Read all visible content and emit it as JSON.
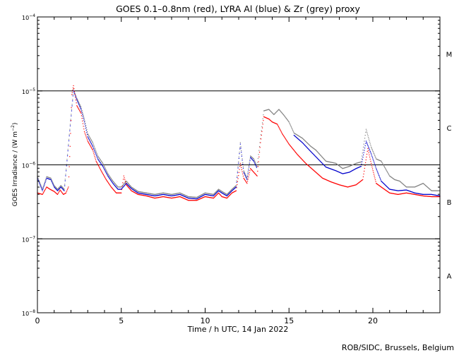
{
  "chart_data": {
    "type": "scatter",
    "title": "GOES 0.1–0.8nm (red), LYRA Al (blue) & Zr (grey) proxy",
    "xlabel": "Time / h UTC, 14 Jan 2022",
    "ylabel_main": "GOES Irradiance / (W m",
    "ylabel_sup": "−2",
    "ylabel_close": ")",
    "credit": "ROB/SIDC, Brussels, Belgium",
    "xlim": [
      0,
      24
    ],
    "ylim_log10": [
      -8,
      -4
    ],
    "x_ticks": [
      {
        "value": 0,
        "label": "0"
      },
      {
        "value": 5,
        "label": "5"
      },
      {
        "value": 10,
        "label": "10"
      },
      {
        "value": 15,
        "label": "15"
      },
      {
        "value": 20,
        "label": "20"
      }
    ],
    "y_ticks": [
      {
        "exp": -4,
        "base": "10",
        "sup": "−4"
      },
      {
        "exp": -5,
        "base": "10",
        "sup": "−5"
      },
      {
        "exp": -6,
        "base": "10",
        "sup": "−6"
      },
      {
        "exp": -7,
        "base": "10",
        "sup": "−7"
      },
      {
        "exp": -8,
        "base": "10",
        "sup": "−8"
      }
    ],
    "reference_lines_log10": [
      -5,
      -6,
      -7
    ],
    "flare_classes": [
      {
        "label": "M",
        "log10": -4.5
      },
      {
        "label": "C",
        "log10": -5.5
      },
      {
        "label": "B",
        "log10": -6.5
      },
      {
        "label": "A",
        "log10": -7.5
      }
    ],
    "colors": {
      "goes": "#ff0000",
      "lyra_al": "#0000cc",
      "lyra_zr": "#808080"
    },
    "series": [
      {
        "name": "GOES",
        "color": "#ff0000",
        "points": [
          [
            0.0,
            -6.38
          ],
          [
            0.3,
            -6.4
          ],
          [
            0.55,
            -6.3
          ],
          [
            0.75,
            -6.33
          ],
          [
            1.0,
            -6.36
          ],
          [
            1.2,
            -6.4
          ],
          [
            1.35,
            -6.34
          ],
          [
            1.55,
            -6.4
          ],
          [
            1.7,
            -6.38
          ],
          [
            1.85,
            -6.3
          ],
          [
            1.95,
            -5.75
          ],
          [
            2.05,
            -5.05
          ],
          [
            2.15,
            -4.93
          ],
          [
            2.35,
            -5.2
          ],
          [
            2.6,
            -5.3
          ],
          [
            2.8,
            -5.55
          ],
          [
            3.0,
            -5.68
          ],
          [
            3.3,
            -5.8
          ],
          [
            3.5,
            -5.95
          ],
          [
            3.8,
            -6.08
          ],
          [
            4.1,
            -6.2
          ],
          [
            4.4,
            -6.3
          ],
          [
            4.7,
            -6.38
          ],
          [
            5.0,
            -6.38
          ],
          [
            5.15,
            -6.15
          ],
          [
            5.3,
            -6.27
          ],
          [
            5.6,
            -6.35
          ],
          [
            6.0,
            -6.4
          ],
          [
            6.5,
            -6.42
          ],
          [
            7.0,
            -6.45
          ],
          [
            7.5,
            -6.43
          ],
          [
            8.0,
            -6.45
          ],
          [
            8.5,
            -6.43
          ],
          [
            9.0,
            -6.48
          ],
          [
            9.5,
            -6.48
          ],
          [
            10.0,
            -6.43
          ],
          [
            10.5,
            -6.45
          ],
          [
            10.8,
            -6.38
          ],
          [
            11.0,
            -6.43
          ],
          [
            11.3,
            -6.45
          ],
          [
            11.6,
            -6.38
          ],
          [
            11.85,
            -6.35
          ],
          [
            12.1,
            -5.98
          ],
          [
            12.3,
            -6.18
          ],
          [
            12.5,
            -6.25
          ],
          [
            12.7,
            -6.05
          ],
          [
            12.9,
            -6.1
          ],
          [
            13.1,
            -6.15
          ],
          [
            13.3,
            -5.7
          ],
          [
            13.5,
            -5.35
          ],
          [
            13.8,
            -5.38
          ],
          [
            14.0,
            -5.42
          ],
          [
            14.3,
            -5.45
          ],
          [
            14.6,
            -5.58
          ],
          [
            15.0,
            -5.72
          ],
          [
            15.5,
            -5.86
          ],
          [
            16.0,
            -5.98
          ],
          [
            16.5,
            -6.08
          ],
          [
            17.0,
            -6.18
          ],
          [
            17.5,
            -6.23
          ],
          [
            18.0,
            -6.27
          ],
          [
            18.5,
            -6.3
          ],
          [
            19.0,
            -6.27
          ],
          [
            19.4,
            -6.2
          ],
          [
            19.7,
            -5.78
          ],
          [
            19.9,
            -5.98
          ],
          [
            20.2,
            -6.25
          ],
          [
            20.5,
            -6.3
          ],
          [
            21.0,
            -6.38
          ],
          [
            21.5,
            -6.4
          ],
          [
            22.0,
            -6.38
          ],
          [
            22.5,
            -6.4
          ],
          [
            23.0,
            -6.42
          ],
          [
            23.5,
            -6.43
          ],
          [
            24.0,
            -6.43
          ]
        ]
      },
      {
        "name": "LYRA Al proxy",
        "color": "#0000cc",
        "points": [
          [
            0.0,
            -6.18
          ],
          [
            0.3,
            -6.35
          ],
          [
            0.55,
            -6.18
          ],
          [
            0.8,
            -6.2
          ],
          [
            1.0,
            -6.3
          ],
          [
            1.2,
            -6.35
          ],
          [
            1.4,
            -6.3
          ],
          [
            1.6,
            -6.35
          ],
          [
            2.15,
            -5.0
          ],
          [
            2.35,
            -5.12
          ],
          [
            2.6,
            -5.25
          ],
          [
            2.8,
            -5.42
          ],
          [
            3.0,
            -5.62
          ],
          [
            3.3,
            -5.75
          ],
          [
            3.6,
            -5.92
          ],
          [
            3.9,
            -6.02
          ],
          [
            4.2,
            -6.15
          ],
          [
            4.5,
            -6.25
          ],
          [
            4.8,
            -6.33
          ],
          [
            5.0,
            -6.33
          ],
          [
            5.3,
            -6.25
          ],
          [
            5.6,
            -6.32
          ],
          [
            6.0,
            -6.38
          ],
          [
            6.5,
            -6.4
          ],
          [
            7.0,
            -6.42
          ],
          [
            7.5,
            -6.4
          ],
          [
            8.0,
            -6.42
          ],
          [
            8.5,
            -6.4
          ],
          [
            9.0,
            -6.45
          ],
          [
            9.5,
            -6.46
          ],
          [
            10.0,
            -6.4
          ],
          [
            10.5,
            -6.42
          ],
          [
            10.8,
            -6.35
          ],
          [
            11.0,
            -6.38
          ],
          [
            11.3,
            -6.42
          ],
          [
            11.6,
            -6.35
          ],
          [
            11.85,
            -6.3
          ],
          [
            12.1,
            -5.72
          ],
          [
            12.3,
            -6.1
          ],
          [
            12.5,
            -6.2
          ],
          [
            12.7,
            -5.9
          ],
          [
            12.9,
            -5.95
          ],
          [
            13.1,
            -6.05
          ],
          [
            15.3,
            -5.6
          ],
          [
            15.8,
            -5.7
          ],
          [
            16.3,
            -5.82
          ],
          [
            17.2,
            -6.03
          ],
          [
            17.8,
            -6.08
          ],
          [
            18.2,
            -6.12
          ],
          [
            18.6,
            -6.1
          ],
          [
            19.0,
            -6.05
          ],
          [
            19.3,
            -6.02
          ],
          [
            19.6,
            -5.68
          ],
          [
            19.9,
            -5.85
          ],
          [
            20.2,
            -6.05
          ],
          [
            20.5,
            -6.22
          ],
          [
            21.0,
            -6.33
          ],
          [
            21.5,
            -6.35
          ],
          [
            22.0,
            -6.34
          ],
          [
            22.5,
            -6.38
          ],
          [
            23.0,
            -6.4
          ],
          [
            23.5,
            -6.4
          ],
          [
            24.0,
            -6.42
          ]
        ]
      },
      {
        "name": "LYRA Zr proxy",
        "color": "#808080",
        "points": [
          [
            0.0,
            -6.16
          ],
          [
            0.3,
            -6.33
          ],
          [
            0.55,
            -6.16
          ],
          [
            0.8,
            -6.18
          ],
          [
            1.0,
            -6.28
          ],
          [
            1.2,
            -6.33
          ],
          [
            1.4,
            -6.28
          ],
          [
            1.6,
            -6.33
          ],
          [
            2.15,
            -4.98
          ],
          [
            2.35,
            -5.1
          ],
          [
            2.6,
            -5.22
          ],
          [
            2.8,
            -5.38
          ],
          [
            3.0,
            -5.58
          ],
          [
            3.3,
            -5.7
          ],
          [
            3.6,
            -5.88
          ],
          [
            3.9,
            -5.98
          ],
          [
            4.2,
            -6.12
          ],
          [
            4.5,
            -6.22
          ],
          [
            4.8,
            -6.3
          ],
          [
            5.0,
            -6.3
          ],
          [
            5.3,
            -6.22
          ],
          [
            5.6,
            -6.3
          ],
          [
            6.0,
            -6.36
          ],
          [
            6.5,
            -6.38
          ],
          [
            7.0,
            -6.4
          ],
          [
            7.5,
            -6.38
          ],
          [
            8.0,
            -6.4
          ],
          [
            8.5,
            -6.38
          ],
          [
            9.0,
            -6.43
          ],
          [
            9.5,
            -6.44
          ],
          [
            10.0,
            -6.38
          ],
          [
            10.5,
            -6.4
          ],
          [
            10.8,
            -6.33
          ],
          [
            11.0,
            -6.36
          ],
          [
            11.3,
            -6.4
          ],
          [
            11.6,
            -6.33
          ],
          [
            11.85,
            -6.28
          ],
          [
            12.1,
            -5.7
          ],
          [
            12.3,
            -6.08
          ],
          [
            12.5,
            -6.18
          ],
          [
            12.7,
            -5.88
          ],
          [
            12.9,
            -5.92
          ],
          [
            13.1,
            -6.02
          ],
          [
            13.5,
            -5.27
          ],
          [
            13.8,
            -5.25
          ],
          [
            14.1,
            -5.32
          ],
          [
            14.4,
            -5.25
          ],
          [
            14.7,
            -5.33
          ],
          [
            15.0,
            -5.42
          ],
          [
            15.3,
            -5.57
          ],
          [
            15.8,
            -5.64
          ],
          [
            16.3,
            -5.75
          ],
          [
            16.6,
            -5.8
          ],
          [
            17.2,
            -5.95
          ],
          [
            17.8,
            -5.98
          ],
          [
            18.2,
            -6.05
          ],
          [
            18.6,
            -6.02
          ],
          [
            19.0,
            -5.98
          ],
          [
            19.3,
            -5.96
          ],
          [
            19.6,
            -5.52
          ],
          [
            19.9,
            -5.76
          ],
          [
            20.2,
            -5.92
          ],
          [
            20.5,
            -5.95
          ],
          [
            21.0,
            -6.15
          ],
          [
            21.3,
            -6.2
          ],
          [
            21.6,
            -6.22
          ],
          [
            22.0,
            -6.3
          ],
          [
            22.5,
            -6.3
          ],
          [
            23.0,
            -6.25
          ],
          [
            23.5,
            -6.35
          ],
          [
            24.0,
            -6.35
          ]
        ]
      }
    ]
  }
}
